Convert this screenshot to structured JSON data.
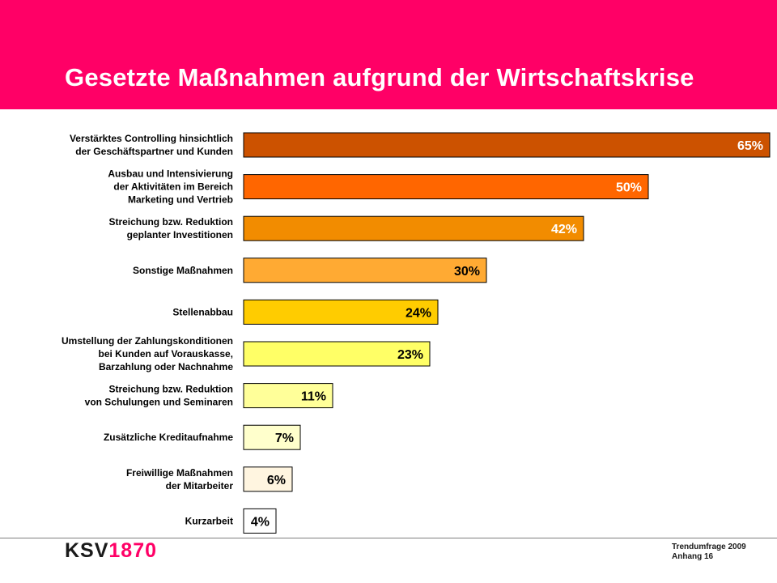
{
  "header": {
    "title": "Gesetzte Maßnahmen aufgrund der Wirtschaftskrise",
    "color": "#ff0066"
  },
  "chart_data": {
    "type": "bar",
    "orientation": "horizontal",
    "categories": [
      [
        "Verstärktes Controlling hinsichtlich",
        "der Geschäftspartner und Kunden"
      ],
      [
        "Ausbau und Intensivierung",
        "der Aktivitäten im Bereich",
        "Marketing und Vertrieb"
      ],
      [
        "Streichung bzw. Reduktion",
        "geplanter Investitionen"
      ],
      [
        "Sonstige Maßnahmen"
      ],
      [
        "Stellenabbau"
      ],
      [
        "Umstellung der Zahlungskonditionen",
        "bei Kunden auf Vorauskasse,",
        "Barzahlung oder Nachnahme"
      ],
      [
        "Streichung bzw. Reduktion",
        "von Schulungen und Seminaren"
      ],
      [
        "Zusätzliche Kreditaufnahme"
      ],
      [
        "Freiwillige Maßnahmen",
        "der Mitarbeiter"
      ],
      [
        "Kurzarbeit"
      ]
    ],
    "values": [
      65,
      50,
      42,
      30,
      24,
      23,
      11,
      7,
      6,
      4
    ],
    "value_labels": [
      "65%",
      "50%",
      "42%",
      "30%",
      "24%",
      "23%",
      "11%",
      "7%",
      "6%",
      "4%"
    ],
    "colors": [
      "#cc5200",
      "#ff6600",
      "#f28c00",
      "#ffaa33",
      "#ffcc00",
      "#ffff66",
      "#ffff99",
      "#ffffcc",
      "#fff5e0",
      "#ffffff"
    ],
    "label_colors": [
      "#ffffff",
      "#ffffff",
      "#ffffff",
      "#000000",
      "#000000",
      "#000000",
      "#000000",
      "#000000",
      "#000000",
      "#000000"
    ],
    "xlim": [
      0,
      65
    ],
    "grid": false,
    "legend": "none"
  },
  "footer": {
    "logo_part1": "KSV",
    "logo_part2": "1870",
    "line1": "Trendumfrage 2009",
    "line2": "Anhang 16"
  }
}
